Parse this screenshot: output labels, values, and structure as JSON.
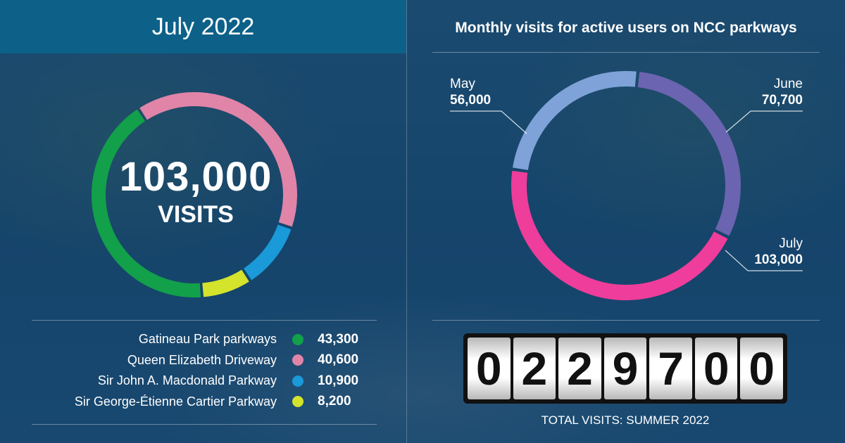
{
  "left_header": "July 2022",
  "right_title": "Monthly visits for active users on NCC parkways",
  "center": {
    "value": "103,000",
    "label": "VISITS"
  },
  "odometer_digits": [
    "0",
    "2",
    "2",
    "9",
    "7",
    "0",
    "0"
  ],
  "total_caption": "TOTAL VISITS: SUMMER 2022",
  "chart_data": [
    {
      "type": "pie",
      "variant": "donut",
      "title": "July 2022",
      "center_text": "103,000 VISITS",
      "series": [
        {
          "name": "Gatineau Park parkways",
          "value": 43300,
          "label": "43,300",
          "color": "#12a04a"
        },
        {
          "name": "Queen Elizabeth Driveway",
          "value": 40600,
          "label": "40,600",
          "color": "#e084a8"
        },
        {
          "name": "Sir John A. Macdonald Parkway",
          "value": 10900,
          "label": "10,900",
          "color": "#1a9ad8"
        },
        {
          "name": "Sir George-Étienne Cartier Parkway",
          "value": 8200,
          "label": "8,200",
          "color": "#d4e32b"
        }
      ],
      "legend_position": "bottom"
    },
    {
      "type": "pie",
      "variant": "donut",
      "title": "Monthly visits for active users on NCC parkways",
      "series": [
        {
          "name": "May",
          "value": 56000,
          "label": "56,000",
          "color": "#7fa2d8"
        },
        {
          "name": "June",
          "value": 70700,
          "label": "70,700",
          "color": "#6b64b0"
        },
        {
          "name": "July",
          "value": 103000,
          "label": "103,000",
          "color": "#ee3d9a"
        }
      ]
    }
  ]
}
